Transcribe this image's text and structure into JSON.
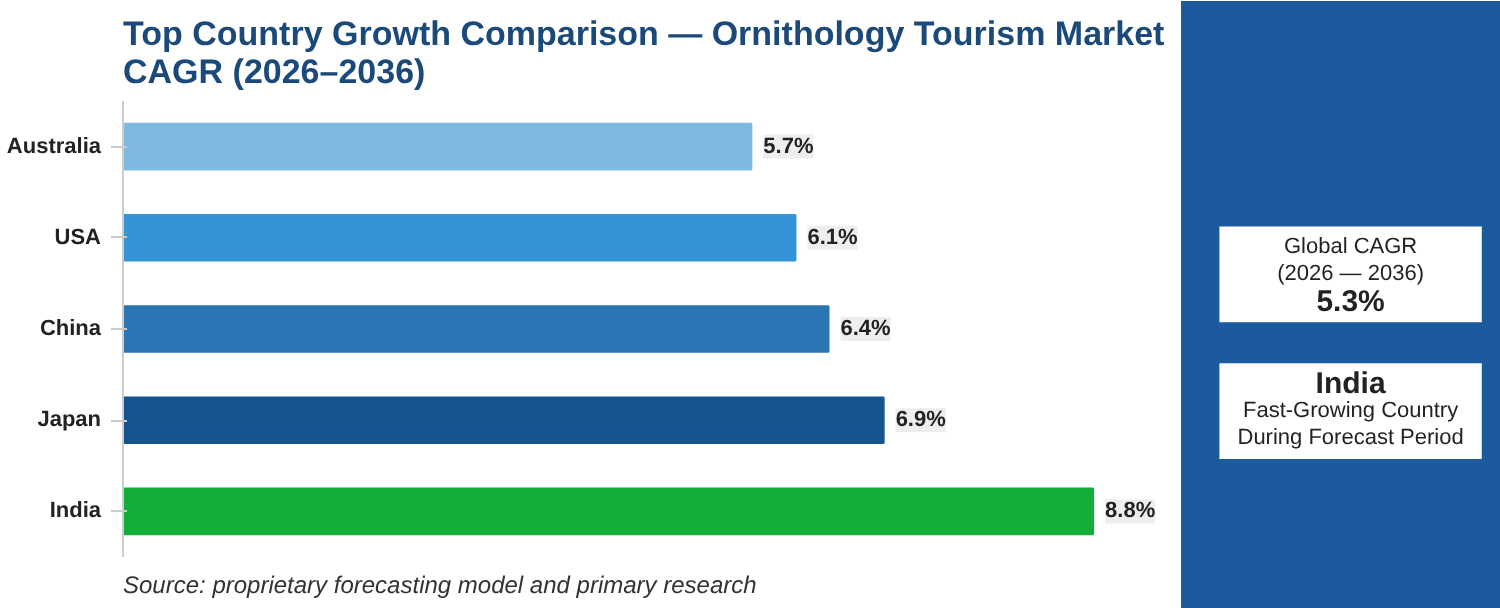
{
  "chart_data": {
    "type": "bar",
    "orientation": "horizontal",
    "title": "Top Country Growth Comparison — Ornithology Tourism Market CAGR (2026–2036)",
    "categories": [
      "Australia",
      "USA",
      "China",
      "Japan",
      "India"
    ],
    "values": [
      5.7,
      6.1,
      6.4,
      6.9,
      8.8
    ],
    "colors": [
      "#7fb9e0",
      "#3594d6",
      "#2a75b3",
      "#15558f",
      "#14ad3a"
    ],
    "value_labels": [
      "5.7%",
      "6.1%",
      "6.4%",
      "6.9%",
      "8.8%"
    ],
    "tick_labels": "y",
    "annotations": [
      "Source: proprietary forecasting model and primary research",
      "Global CAGR",
      "(2026 — 2036)",
      "5.3%",
      "India",
      "Fast-Growing Country",
      "During Forecast Period"
    ]
  }
}
